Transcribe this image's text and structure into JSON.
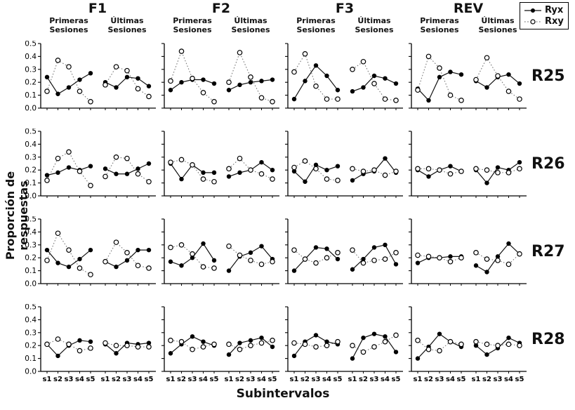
{
  "chart_data": {
    "type": "line",
    "title": "",
    "xlabel": "Subintervalos",
    "ylabel": "Proporción de respuestas",
    "ylim": [
      0.0,
      0.5
    ],
    "yticks": [
      0.0,
      0.1,
      0.2,
      0.3,
      0.4,
      0.5
    ],
    "x_categories": [
      "s1",
      "s2",
      "s3",
      "s4",
      "s5"
    ],
    "conditions": [
      "F1",
      "F2",
      "F3",
      "REV"
    ],
    "session_labels": [
      "Primeras Sesiones",
      "Últimas Sesiones"
    ],
    "legend": {
      "items": [
        {
          "label": "Ryx",
          "marker": "filled-circle",
          "line": "solid"
        },
        {
          "label": "Rxy",
          "marker": "open-circle",
          "line": "dotted"
        }
      ]
    },
    "colors": {
      "solid_line": "#111111",
      "dotted_line": "#7a7a7a",
      "marker_stroke": "#000000",
      "background": "#ffffff"
    },
    "grid": false,
    "subjects": [
      {
        "label": "R25",
        "data": {
          "F1": {
            "primeras": {
              "Ryx": [
                0.24,
                0.11,
                0.16,
                0.22,
                0.27
              ],
              "Rxy": [
                0.13,
                0.37,
                0.32,
                0.13,
                0.05
              ]
            },
            "ultimas": {
              "Ryx": [
                0.2,
                0.16,
                0.24,
                0.23,
                0.17
              ],
              "Rxy": [
                0.18,
                0.32,
                0.29,
                0.15,
                0.09
              ]
            }
          },
          "F2": {
            "primeras": {
              "Ryx": [
                0.14,
                0.2,
                0.22,
                0.22,
                0.19
              ],
              "Rxy": [
                0.21,
                0.44,
                0.23,
                0.12,
                0.05
              ]
            },
            "ultimas": {
              "Ryx": [
                0.14,
                0.18,
                0.2,
                0.21,
                0.22
              ],
              "Rxy": [
                0.2,
                0.43,
                0.24,
                0.08,
                0.05
              ]
            }
          },
          "F3": {
            "primeras": {
              "Ryx": [
                0.07,
                0.21,
                0.33,
                0.25,
                0.14
              ],
              "Rxy": [
                0.28,
                0.42,
                0.17,
                0.07,
                0.07
              ]
            },
            "ultimas": {
              "Ryx": [
                0.13,
                0.16,
                0.25,
                0.23,
                0.19
              ],
              "Rxy": [
                0.3,
                0.36,
                0.19,
                0.07,
                0.06
              ]
            }
          },
          "REV": {
            "primeras": {
              "Ryx": [
                0.15,
                0.06,
                0.24,
                0.28,
                0.26
              ],
              "Rxy": [
                0.14,
                0.4,
                0.31,
                0.1,
                0.06
              ]
            },
            "ultimas": {
              "Ryx": [
                0.21,
                0.16,
                0.24,
                0.26,
                0.19
              ],
              "Rxy": [
                0.22,
                0.39,
                0.25,
                0.13,
                0.07
              ]
            }
          }
        }
      },
      {
        "label": "R26",
        "data": {
          "F1": {
            "primeras": {
              "Ryx": [
                0.16,
                0.18,
                0.22,
                0.2,
                0.23
              ],
              "Rxy": [
                0.12,
                0.29,
                0.34,
                0.19,
                0.08
              ]
            },
            "ultimas": {
              "Ryx": [
                0.21,
                0.17,
                0.17,
                0.21,
                0.25
              ],
              "Rxy": [
                0.15,
                0.3,
                0.29,
                0.17,
                0.11
              ]
            }
          },
          "F2": {
            "primeras": {
              "Ryx": [
                0.25,
                0.13,
                0.24,
                0.18,
                0.18
              ],
              "Rxy": [
                0.26,
                0.28,
                0.24,
                0.13,
                0.11
              ]
            },
            "ultimas": {
              "Ryx": [
                0.15,
                0.18,
                0.2,
                0.26,
                0.2
              ],
              "Rxy": [
                0.21,
                0.29,
                0.2,
                0.17,
                0.13
              ]
            }
          },
          "F3": {
            "primeras": {
              "Ryx": [
                0.19,
                0.11,
                0.24,
                0.2,
                0.23
              ],
              "Rxy": [
                0.22,
                0.27,
                0.21,
                0.13,
                0.12
              ]
            },
            "ultimas": {
              "Ryx": [
                0.12,
                0.17,
                0.19,
                0.29,
                0.18
              ],
              "Rxy": [
                0.21,
                0.19,
                0.2,
                0.16,
                0.19
              ]
            }
          },
          "REV": {
            "primeras": {
              "Ryx": [
                0.2,
                0.15,
                0.2,
                0.23,
                0.19
              ],
              "Rxy": [
                0.21,
                0.21,
                0.2,
                0.17,
                0.19
              ]
            },
            "ultimas": {
              "Ryx": [
                0.2,
                0.1,
                0.22,
                0.2,
                0.26
              ],
              "Rxy": [
                0.21,
                0.2,
                0.18,
                0.18,
                0.21
              ]
            }
          }
        }
      },
      {
        "label": "R27",
        "data": {
          "F1": {
            "primeras": {
              "Ryx": [
                0.26,
                0.16,
                0.13,
                0.19,
                0.26
              ],
              "Rxy": [
                0.18,
                0.39,
                0.26,
                0.12,
                0.07
              ]
            },
            "ultimas": {
              "Ryx": [
                0.17,
                0.13,
                0.18,
                0.26,
                0.26
              ],
              "Rxy": [
                0.17,
                0.32,
                0.24,
                0.14,
                0.12
              ]
            }
          },
          "F2": {
            "primeras": {
              "Ryx": [
                0.17,
                0.14,
                0.2,
                0.31,
                0.18
              ],
              "Rxy": [
                0.28,
                0.3,
                0.23,
                0.13,
                0.12
              ]
            },
            "ultimas": {
              "Ryx": [
                0.1,
                0.21,
                0.24,
                0.29,
                0.19
              ],
              "Rxy": [
                0.29,
                0.22,
                0.18,
                0.15,
                0.17
              ]
            }
          },
          "F3": {
            "primeras": {
              "Ryx": [
                0.1,
                0.19,
                0.28,
                0.27,
                0.19
              ],
              "Rxy": [
                0.26,
                0.19,
                0.16,
                0.2,
                0.24
              ]
            },
            "ultimas": {
              "Ryx": [
                0.11,
                0.19,
                0.28,
                0.3,
                0.15
              ],
              "Rxy": [
                0.26,
                0.16,
                0.18,
                0.19,
                0.24
              ]
            }
          },
          "REV": {
            "primeras": {
              "Ryx": [
                0.16,
                0.2,
                0.2,
                0.21,
                0.21
              ],
              "Rxy": [
                0.22,
                0.21,
                0.2,
                0.17,
                0.2
              ]
            },
            "ultimas": {
              "Ryx": [
                0.14,
                0.09,
                0.21,
                0.31,
                0.23
              ],
              "Rxy": [
                0.24,
                0.19,
                0.18,
                0.15,
                0.23
              ]
            }
          }
        }
      },
      {
        "label": "R28",
        "data": {
          "F1": {
            "primeras": {
              "Ryx": [
                0.21,
                0.12,
                0.2,
                0.24,
                0.23
              ],
              "Rxy": [
                0.21,
                0.25,
                0.21,
                0.16,
                0.18
              ]
            },
            "ultimas": {
              "Ryx": [
                0.21,
                0.14,
                0.22,
                0.21,
                0.22
              ],
              "Rxy": [
                0.22,
                0.2,
                0.2,
                0.19,
                0.19
              ]
            }
          },
          "F2": {
            "primeras": {
              "Ryx": [
                0.14,
                0.21,
                0.27,
                0.23,
                0.2
              ],
              "Rxy": [
                0.24,
                0.23,
                0.17,
                0.19,
                0.21
              ]
            },
            "ultimas": {
              "Ryx": [
                0.13,
                0.22,
                0.24,
                0.26,
                0.19
              ],
              "Rxy": [
                0.21,
                0.17,
                0.2,
                0.22,
                0.24
              ]
            }
          },
          "F3": {
            "primeras": {
              "Ryx": [
                0.12,
                0.23,
                0.28,
                0.23,
                0.21
              ],
              "Rxy": [
                0.22,
                0.21,
                0.19,
                0.2,
                0.23
              ]
            },
            "ultimas": {
              "Ryx": [
                0.1,
                0.26,
                0.29,
                0.27,
                0.15
              ],
              "Rxy": [
                0.2,
                0.15,
                0.19,
                0.23,
                0.28
              ]
            }
          },
          "REV": {
            "primeras": {
              "Ryx": [
                0.1,
                0.19,
                0.29,
                0.23,
                0.19
              ],
              "Rxy": [
                0.24,
                0.17,
                0.16,
                0.23,
                0.21
              ]
            },
            "ultimas": {
              "Ryx": [
                0.2,
                0.13,
                0.18,
                0.26,
                0.22
              ],
              "Rxy": [
                0.23,
                0.21,
                0.2,
                0.21,
                0.2
              ]
            }
          }
        }
      }
    ]
  }
}
